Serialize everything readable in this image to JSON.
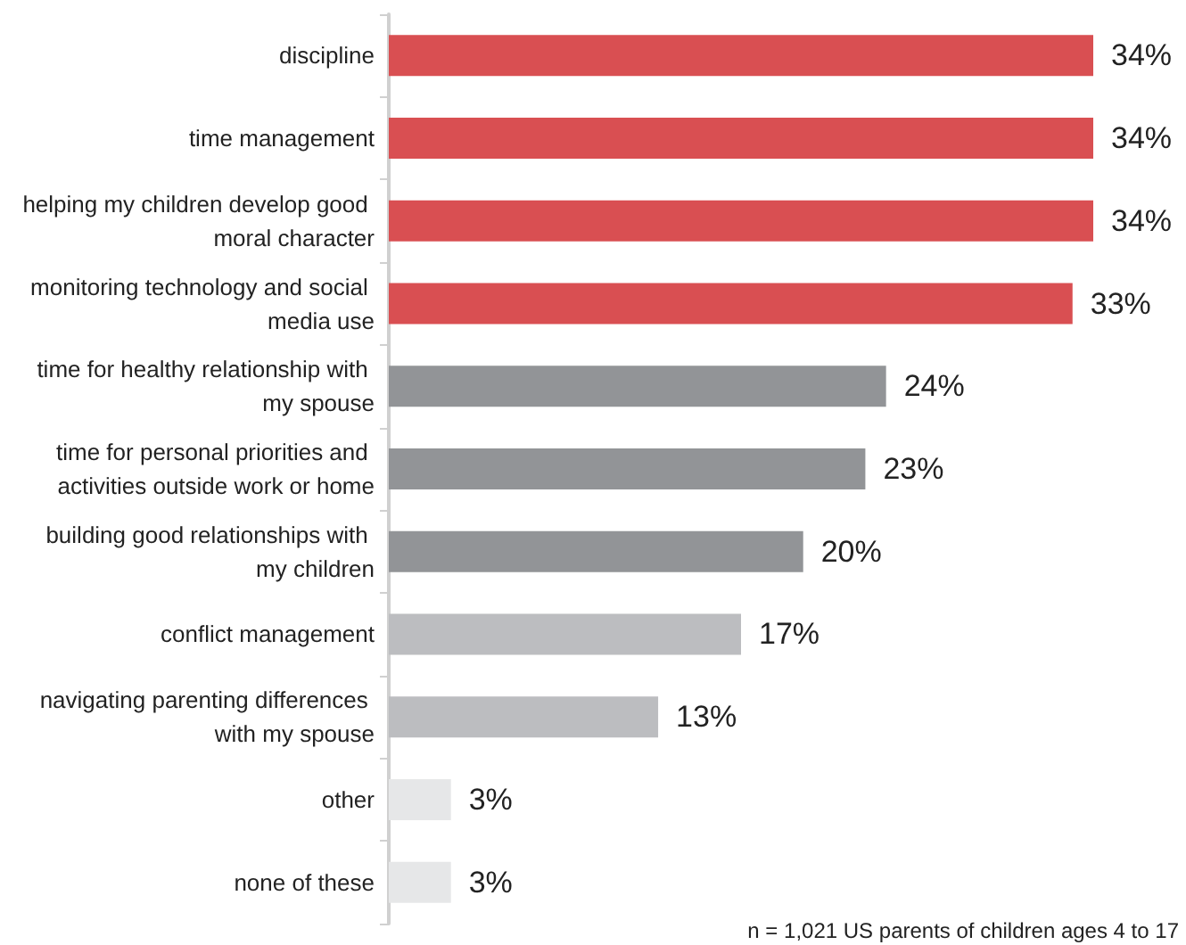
{
  "chart_data": {
    "type": "bar",
    "orientation": "horizontal",
    "categories": [
      "discipline",
      "time management",
      "helping my children develop good moral character",
      "monitoring technology and social media use",
      "time for healthy relationship with my spouse",
      "time for personal priorities and activities outside work or home",
      "building good relationships with my children",
      "conflict management",
      "navigating parenting differences with my spouse",
      "other",
      "none of these"
    ],
    "values": [
      34,
      34,
      34,
      33,
      24,
      23,
      20,
      17,
      13,
      3,
      3
    ],
    "colors": [
      "#d94f52",
      "#d94f52",
      "#d94f52",
      "#d94f52",
      "#929497",
      "#929497",
      "#929497",
      "#bcbdc0",
      "#bcbdc0",
      "#e6e7e8",
      "#e6e7e8"
    ],
    "value_labels": [
      "34%",
      "34%",
      "34%",
      "33%",
      "24%",
      "23%",
      "20%",
      "17%",
      "13%",
      "3%",
      "3%"
    ],
    "annotations": [
      "n = 1,021 US parents of children ages 4 to 17"
    ]
  }
}
